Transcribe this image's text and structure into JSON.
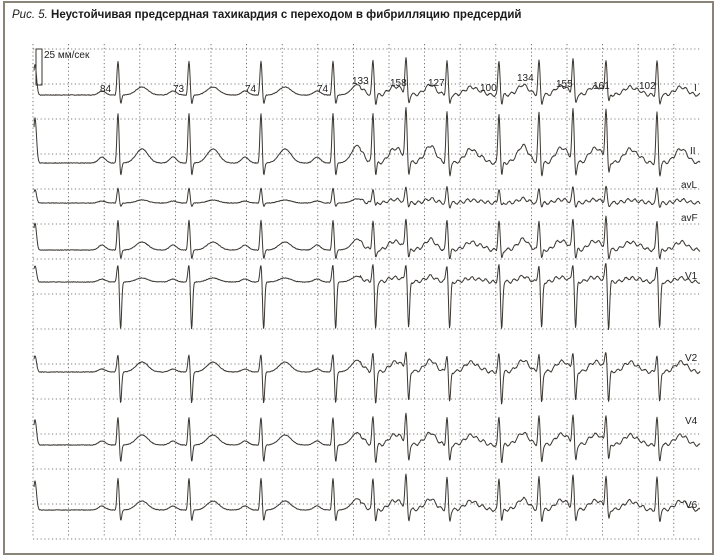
{
  "figure": {
    "number_label": "Рис. 5.",
    "title": "Неустойчивая предсердная тахикардия с переходом в фибрилляцию предсердий"
  },
  "ecg": {
    "speed_label": "25 мм/сек",
    "leads": [
      "I",
      "II",
      "avL",
      "avF",
      "V1",
      "V2",
      "V4",
      "V6"
    ],
    "rr_annotations": [
      "84",
      "73",
      "74",
      "74",
      "133",
      "158",
      "127",
      "100",
      "134",
      "155",
      "161",
      "102"
    ],
    "trace_color": "#3a3631",
    "grid_color": "#555555"
  }
}
